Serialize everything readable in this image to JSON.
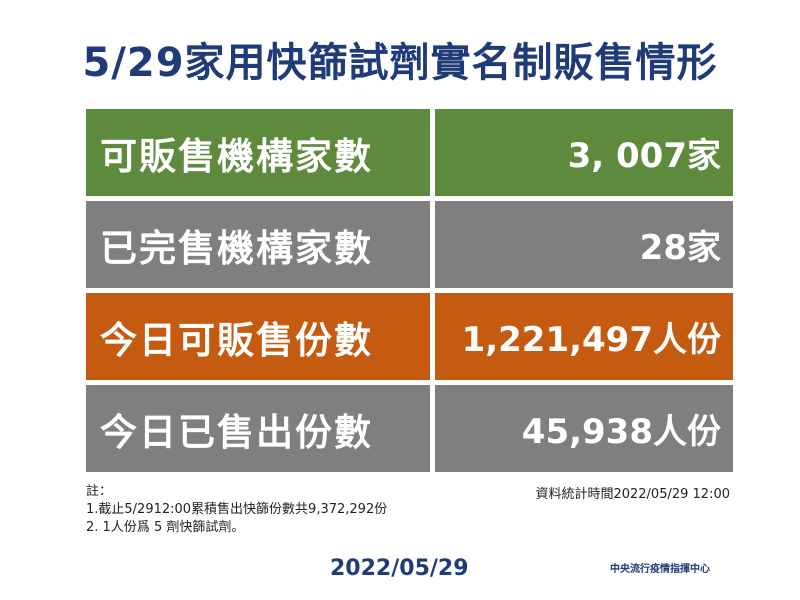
{
  "title": "5/29家用快篩試劑實名制販售情形",
  "rows": [
    {
      "label": "可販售機構家數",
      "value": "3, 007家",
      "color": "#5d8a3c"
    },
    {
      "label": "已完售機構家數",
      "value": "28家",
      "color": "#7f7f7f"
    },
    {
      "label": "今日可販售份數",
      "value": "1,221,497人份",
      "color": "#c55a11"
    },
    {
      "label": "今日已售出份數",
      "value": "45,938人份",
      "color": "#7f7f7f"
    }
  ],
  "notes": {
    "heading": "註：",
    "lines": [
      "1.截止5/2912:00累積售出快篩份數共9,372,292份",
      "2. 1人份爲 5 劑快篩試劑。"
    ],
    "stat_time": "資料統計時間2022/05/29 12:00"
  },
  "footer": {
    "date": "2022/05/29",
    "org": "中央流行疫情指揮中心"
  }
}
